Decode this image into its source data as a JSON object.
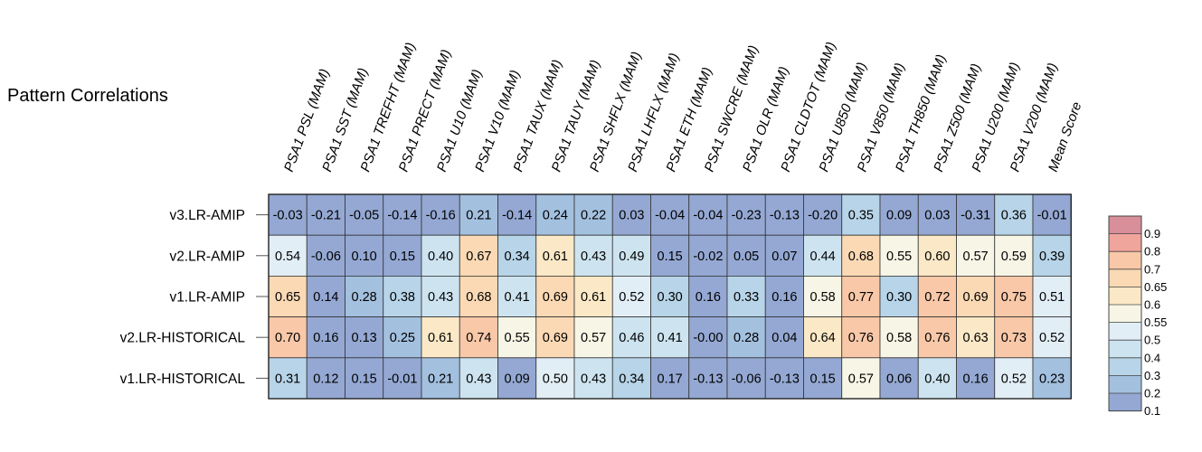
{
  "chart_data": {
    "type": "heatmap",
    "title": "Pattern Correlations",
    "columns": [
      "PSA1 PSL (MAM)",
      "PSA1 SST (MAM)",
      "PSA1 TREFHT (MAM)",
      "PSA1 PRECT (MAM)",
      "PSA1 U10 (MAM)",
      "PSA1 V10 (MAM)",
      "PSA1 TAUX (MAM)",
      "PSA1 TAUY (MAM)",
      "PSA1 SHFLX (MAM)",
      "PSA1 LHFLX (MAM)",
      "PSA1 ETH (MAM)",
      "PSA1 SWCRE (MAM)",
      "PSA1 OLR (MAM)",
      "PSA1 CLDTOT (MAM)",
      "PSA1 U850 (MAM)",
      "PSA1 V850 (MAM)",
      "PSA1 TH850 (MAM)",
      "PSA1 Z500 (MAM)",
      "PSA1 U200 (MAM)",
      "PSA1 V200 (MAM)",
      "Mean Score"
    ],
    "rows": [
      "v3.LR-AMIP",
      "v2.LR-AMIP",
      "v1.LR-AMIP",
      "v2.LR-HISTORICAL",
      "v1.LR-HISTORICAL"
    ],
    "values": [
      [
        "-0.03",
        "-0.21",
        "-0.05",
        "-0.14",
        "-0.16",
        "0.21",
        "-0.14",
        "0.24",
        "0.22",
        "0.03",
        "-0.04",
        "-0.04",
        "-0.23",
        "-0.13",
        "-0.20",
        "0.35",
        "0.09",
        "0.03",
        "-0.31",
        "0.36",
        "-0.01"
      ],
      [
        "0.54",
        "-0.06",
        "0.10",
        "0.15",
        "0.40",
        "0.67",
        "0.34",
        "0.61",
        "0.43",
        "0.49",
        "0.15",
        "-0.02",
        "0.05",
        "0.07",
        "0.44",
        "0.68",
        "0.55",
        "0.60",
        "0.57",
        "0.59",
        "0.39"
      ],
      [
        "0.65",
        "0.14",
        "0.28",
        "0.38",
        "0.43",
        "0.68",
        "0.41",
        "0.69",
        "0.61",
        "0.52",
        "0.30",
        "0.16",
        "0.33",
        "0.16",
        "0.58",
        "0.77",
        "0.30",
        "0.72",
        "0.69",
        "0.75",
        "0.51"
      ],
      [
        "0.70",
        "0.16",
        "0.13",
        "0.25",
        "0.61",
        "0.74",
        "0.55",
        "0.69",
        "0.57",
        "0.46",
        "0.41",
        "-0.00",
        "0.28",
        "0.04",
        "0.64",
        "0.76",
        "0.58",
        "0.76",
        "0.63",
        "0.73",
        "0.52"
      ],
      [
        "0.31",
        "0.12",
        "0.15",
        "-0.01",
        "0.21",
        "0.43",
        "0.09",
        "0.50",
        "0.43",
        "0.34",
        "0.17",
        "-0.13",
        "-0.06",
        "-0.13",
        "0.15",
        "0.57",
        "0.06",
        "0.40",
        "0.16",
        "0.52",
        "0.23"
      ]
    ],
    "legend": {
      "placement": "right",
      "levels": [
        "0.9",
        "0.8",
        "0.7",
        "0.65",
        "0.6",
        "0.55",
        "0.5",
        "0.4",
        "0.3",
        "0.2",
        "0.1"
      ],
      "colors": [
        "#d98f9a",
        "#f0a59c",
        "#f8c8a8",
        "#fad9b4",
        "#fbe8c6",
        "#f7f5e6",
        "#e2eef6",
        "#cde4f0",
        "#b7d4e8",
        "#a3c0df",
        "#94a8d3"
      ]
    }
  }
}
